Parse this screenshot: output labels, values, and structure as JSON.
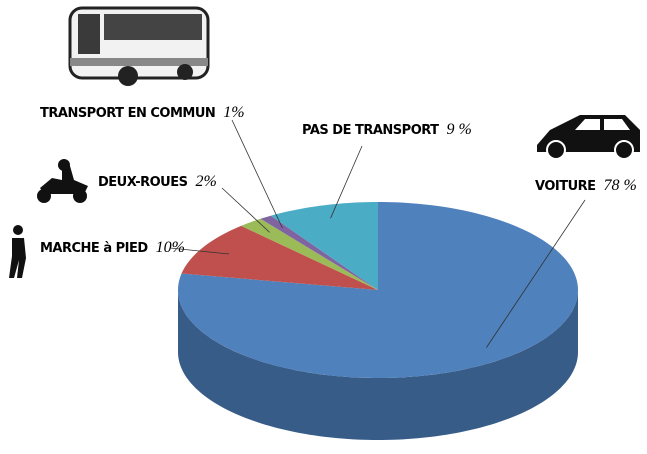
{
  "chart_data": {
    "type": "pie3d",
    "categories": [
      "VOITURE",
      "MARCHE à PIED",
      "DEUX-ROUES",
      "TRANSPORT EN COMMUN",
      "PAS DE TRANSPORT"
    ],
    "values": [
      78,
      10,
      2,
      1,
      9
    ],
    "value_labels": [
      "78 %",
      "10%",
      "2%",
      "1%",
      "9 %"
    ],
    "colors": [
      "#4f81bd",
      "#c0504d",
      "#9bbb59",
      "#8064a2",
      "#4bacc6"
    ]
  }
}
